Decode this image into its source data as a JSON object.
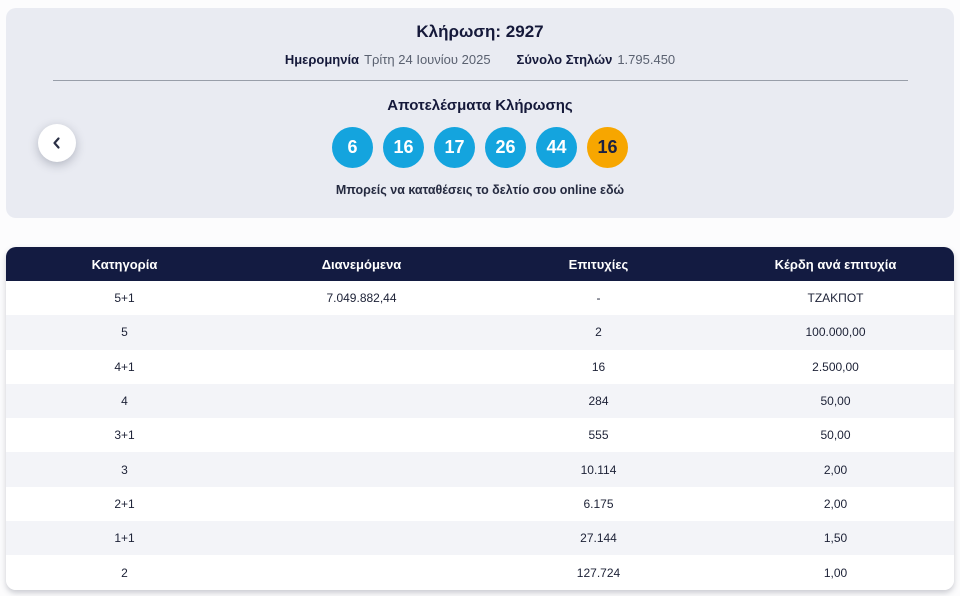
{
  "colors": {
    "panel_bg": "#e9ebf2",
    "navy": "#131b41",
    "ball_blue": "#14a4de",
    "ball_orange": "#f7a600",
    "row_alt": "#f3f4f8"
  },
  "draw": {
    "title": "Κλήρωση: 2927",
    "date_label": "Ημερομηνία",
    "date_value": "Τρίτη 24 Ιουνίου 2025",
    "columns_label": "Σύνολο Στηλών",
    "columns_value": "1.795.450",
    "results_title": "Αποτελέσματα Κλήρωσης",
    "numbers": [
      {
        "value": "6",
        "type": "main"
      },
      {
        "value": "16",
        "type": "main"
      },
      {
        "value": "17",
        "type": "main"
      },
      {
        "value": "26",
        "type": "main"
      },
      {
        "value": "44",
        "type": "main"
      },
      {
        "value": "16",
        "type": "bonus"
      }
    ],
    "cta_text": "Μπορείς να καταθέσεις το δελτίο σου online εδώ"
  },
  "table": {
    "headers": [
      "Κατηγορία",
      "Διανεμόμενα",
      "Επιτυχίες",
      "Κέρδη ανά επιτυχία"
    ],
    "rows": [
      [
        "5+1",
        "7.049.882,44",
        "-",
        "ΤΖΑΚΠΟΤ"
      ],
      [
        "5",
        "",
        "2",
        "100.000,00"
      ],
      [
        "4+1",
        "",
        "16",
        "2.500,00"
      ],
      [
        "4",
        "",
        "284",
        "50,00"
      ],
      [
        "3+1",
        "",
        "555",
        "50,00"
      ],
      [
        "3",
        "",
        "10.114",
        "2,00"
      ],
      [
        "2+1",
        "",
        "6.175",
        "2,00"
      ],
      [
        "1+1",
        "",
        "27.144",
        "1,50"
      ],
      [
        "2",
        "",
        "127.724",
        "1,00"
      ]
    ]
  }
}
